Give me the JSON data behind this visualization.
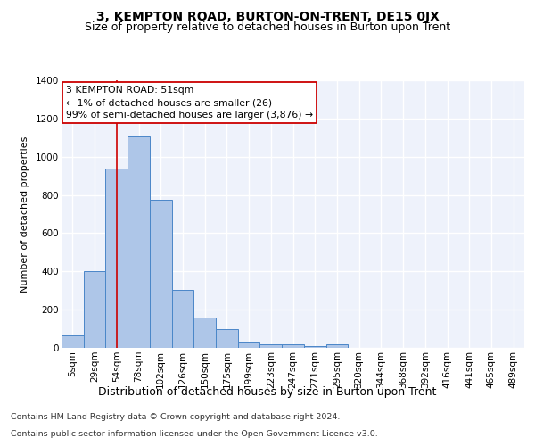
{
  "title": "3, KEMPTON ROAD, BURTON-ON-TRENT, DE15 0JX",
  "subtitle": "Size of property relative to detached houses in Burton upon Trent",
  "xlabel_bottom": "Distribution of detached houses by size in Burton upon Trent",
  "ylabel": "Number of detached properties",
  "footer_line1": "Contains HM Land Registry data © Crown copyright and database right 2024.",
  "footer_line2": "Contains public sector information licensed under the Open Government Licence v3.0.",
  "categories": [
    "5sqm",
    "29sqm",
    "54sqm",
    "78sqm",
    "102sqm",
    "126sqm",
    "150sqm",
    "175sqm",
    "199sqm",
    "223sqm",
    "247sqm",
    "271sqm",
    "295sqm",
    "320sqm",
    "344sqm",
    "368sqm",
    "392sqm",
    "416sqm",
    "441sqm",
    "465sqm",
    "489sqm"
  ],
  "bar_values": [
    65,
    400,
    940,
    1105,
    775,
    305,
    160,
    100,
    35,
    20,
    20,
    10,
    20,
    0,
    0,
    0,
    0,
    0,
    0,
    0,
    0
  ],
  "bar_color": "#aec6e8",
  "bar_edge_color": "#4a86c8",
  "vline_x_index": 2,
  "vline_color": "#cc0000",
  "annotation_text": "3 KEMPTON ROAD: 51sqm\n← 1% of detached houses are smaller (26)\n99% of semi-detached houses are larger (3,876) →",
  "annotation_box_color": "#ffffff",
  "annotation_box_edge_color": "#cc0000",
  "ylim": [
    0,
    1400
  ],
  "yticks": [
    0,
    200,
    400,
    600,
    800,
    1000,
    1200,
    1400
  ],
  "background_color": "#eef2fb",
  "grid_color": "#ffffff",
  "title_fontsize": 10,
  "subtitle_fontsize": 9,
  "annot_fontsize": 7.8,
  "ylabel_fontsize": 8,
  "xlabel_fontsize": 9,
  "footer_fontsize": 6.8,
  "tick_fontsize": 7.5
}
